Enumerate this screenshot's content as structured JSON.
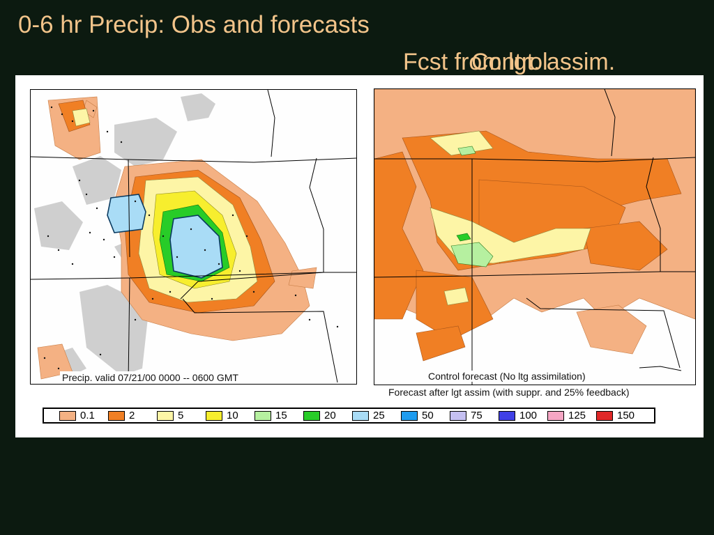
{
  "slide": {
    "title": "0-6 hr Precip:  Obs and forecasts",
    "subtitle_a": "Fcst from lgt. assim.",
    "subtitle_b": "Control"
  },
  "figure": {
    "left_caption": "Precip. valid 07/21/00 0000 -- 0600 GMT",
    "right_caption_top": "Control forecast (No ltg assimilation)",
    "right_caption_bottom": "Forecast after lgt assim (with suppr. and 25% feedback)"
  },
  "legend": {
    "items": [
      {
        "label": "0.1",
        "color": "#f4b183"
      },
      {
        "label": "2",
        "color": "#f07f24"
      },
      {
        "label": "5",
        "color": "#fdf5a6"
      },
      {
        "label": "10",
        "color": "#f7ee2e"
      },
      {
        "label": "15",
        "color": "#b6f0a0"
      },
      {
        "label": "20",
        "color": "#28cc28"
      },
      {
        "label": "25",
        "color": "#a9dcf6"
      },
      {
        "label": "50",
        "color": "#1e9cf0"
      },
      {
        "label": "75",
        "color": "#c5c0f2"
      },
      {
        "label": "100",
        "color": "#4040e6"
      },
      {
        "label": "125",
        "color": "#f5a6c4"
      },
      {
        "label": "150",
        "color": "#e02828"
      }
    ]
  }
}
